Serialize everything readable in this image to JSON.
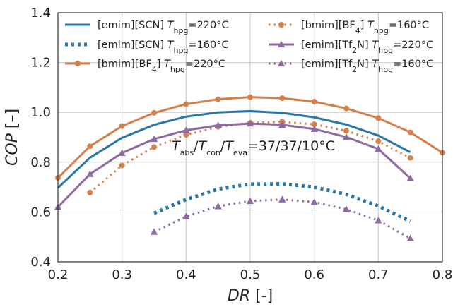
{
  "chart_data": {
    "type": "line",
    "xlabel": "DR",
    "xlabel_unit": "[-]",
    "ylabel": "COP",
    "ylabel_unit": "[–]",
    "xlim": [
      0.2,
      0.8
    ],
    "ylim": [
      0.4,
      1.4
    ],
    "xticks": [
      "0.2",
      "0.3",
      "0.4",
      "0.5",
      "0.6",
      "0.7",
      "0.8"
    ],
    "yticks": [
      "0.4",
      "0.6",
      "0.8",
      "1.0",
      "1.2",
      "1.4"
    ],
    "grid": true,
    "legend_position": "top",
    "annotation": {
      "parts": [
        {
          "t": "T",
          "style": "it"
        },
        {
          "t": "abs",
          "style": "sub"
        },
        {
          "t": "/",
          "style": ""
        },
        {
          "t": "T",
          "style": "it"
        },
        {
          "t": "con",
          "style": "sub"
        },
        {
          "t": "/",
          "style": ""
        },
        {
          "t": "T",
          "style": "it"
        },
        {
          "t": "eva",
          "style": "sub"
        },
        {
          "t": "=37/37/10°C",
          "style": ""
        }
      ],
      "x": 0.505,
      "y": 0.847
    },
    "series": [
      {
        "name_parts": [
          {
            "t": "[emim][SCN] ",
            "style": ""
          },
          {
            "t": "T",
            "style": "it"
          },
          {
            "t": "hpg",
            "style": "sub"
          },
          {
            "t": "=220°C",
            "style": ""
          }
        ],
        "color": "#2a77a6",
        "line": "solid",
        "marker": "none",
        "x": [
          0.2,
          0.25,
          0.3,
          0.35,
          0.4,
          0.45,
          0.5,
          0.55,
          0.6,
          0.65,
          0.7,
          0.75
        ],
        "y": [
          0.697,
          0.818,
          0.898,
          0.95,
          0.983,
          1.0,
          1.005,
          0.998,
          0.98,
          0.951,
          0.907,
          0.84
        ]
      },
      {
        "name_parts": [
          {
            "t": "[emim][SCN] ",
            "style": ""
          },
          {
            "t": "T",
            "style": "it"
          },
          {
            "t": "hpg",
            "style": "sub"
          },
          {
            "t": "=160°C",
            "style": ""
          }
        ],
        "color": "#2a77a6",
        "line": "dotted",
        "marker": "none",
        "x": [
          0.35,
          0.4,
          0.45,
          0.5,
          0.55,
          0.6,
          0.65,
          0.7,
          0.75
        ],
        "y": [
          0.595,
          0.65,
          0.692,
          0.712,
          0.713,
          0.7,
          0.671,
          0.624,
          0.563
        ]
      },
      {
        "name_parts": [
          {
            "t": "[bmim][BF",
            "style": ""
          },
          {
            "t": "4",
            "style": "sub"
          },
          {
            "t": "] ",
            "style": ""
          },
          {
            "t": "T",
            "style": "it"
          },
          {
            "t": "hpg",
            "style": "sub"
          },
          {
            "t": "=220°C",
            "style": ""
          }
        ],
        "color": "#d4804a",
        "line": "solid",
        "marker": "circle",
        "x": [
          0.2,
          0.25,
          0.3,
          0.35,
          0.4,
          0.45,
          0.5,
          0.55,
          0.6,
          0.65,
          0.7,
          0.75,
          0.8
        ],
        "y": [
          0.737,
          0.864,
          0.945,
          0.998,
          1.033,
          1.053,
          1.061,
          1.057,
          1.043,
          1.016,
          0.977,
          0.92,
          0.838
        ]
      },
      {
        "name_parts": [
          {
            "t": "[bmim][BF",
            "style": ""
          },
          {
            "t": "4",
            "style": "sub"
          },
          {
            "t": "] ",
            "style": ""
          },
          {
            "t": "T",
            "style": "it"
          },
          {
            "t": "hpg",
            "style": "sub"
          },
          {
            "t": "=160°C",
            "style": ""
          }
        ],
        "color": "#d4804a",
        "line": "dotted",
        "marker": "circle",
        "x": [
          0.25,
          0.3,
          0.35,
          0.4,
          0.45,
          0.5,
          0.55,
          0.6,
          0.65,
          0.7,
          0.75
        ],
        "y": [
          0.678,
          0.787,
          0.861,
          0.91,
          0.942,
          0.958,
          0.962,
          0.952,
          0.926,
          0.884,
          0.817
        ]
      },
      {
        "name_parts": [
          {
            "t": "[emim][Tf",
            "style": ""
          },
          {
            "t": "2",
            "style": "sub"
          },
          {
            "t": "N] ",
            "style": ""
          },
          {
            "t": "T",
            "style": "it"
          },
          {
            "t": "hpg",
            "style": "sub"
          },
          {
            "t": "=220°C",
            "style": ""
          }
        ],
        "color": "#8d6ba0",
        "line": "solid",
        "marker": "triangle",
        "x": [
          0.2,
          0.25,
          0.3,
          0.35,
          0.4,
          0.45,
          0.5,
          0.55,
          0.6,
          0.65,
          0.7,
          0.75
        ],
        "y": [
          0.62,
          0.752,
          0.837,
          0.893,
          0.928,
          0.948,
          0.955,
          0.95,
          0.933,
          0.901,
          0.853,
          0.735
        ]
      },
      {
        "name_parts": [
          {
            "t": "[emim][Tf",
            "style": ""
          },
          {
            "t": "2",
            "style": "sub"
          },
          {
            "t": "N] ",
            "style": ""
          },
          {
            "t": "T",
            "style": "it"
          },
          {
            "t": "hpg",
            "style": "sub"
          },
          {
            "t": "=160°C",
            "style": ""
          }
        ],
        "color": "#8d6ba0",
        "line": "dotted",
        "marker": "triangle",
        "x": [
          0.35,
          0.4,
          0.45,
          0.5,
          0.55,
          0.6,
          0.65,
          0.7,
          0.75
        ],
        "y": [
          0.52,
          0.582,
          0.623,
          0.644,
          0.65,
          0.64,
          0.611,
          0.566,
          0.494
        ]
      }
    ]
  }
}
